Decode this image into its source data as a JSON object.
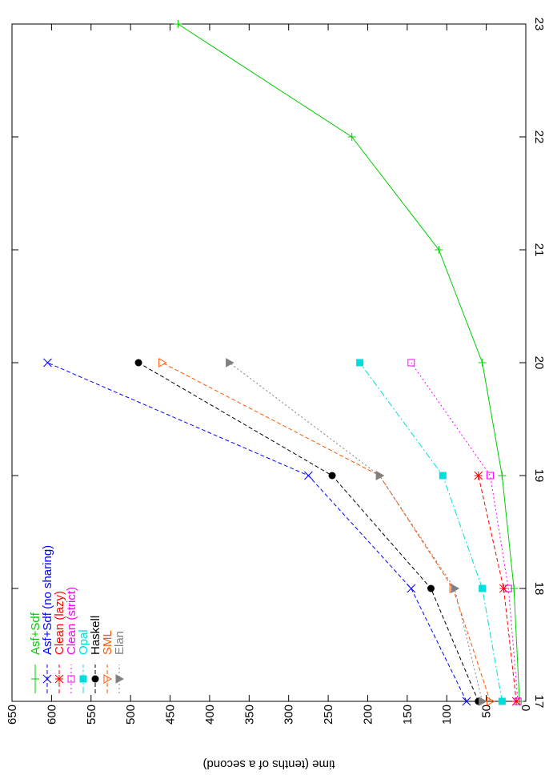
{
  "chart_data": {
    "type": "line",
    "orientation": "rotated-90-clockwise",
    "title": "",
    "xlabel": "",
    "ylabel": "time (tenths of a second)",
    "x": [
      17,
      18,
      19,
      20,
      21,
      22,
      23
    ],
    "x_tick_labels": [
      "17",
      "18",
      "19",
      "20",
      "21",
      "22",
      "23"
    ],
    "xlim": [
      17,
      23
    ],
    "ylim": [
      0,
      650
    ],
    "y_tick_labels": [
      "0",
      "50",
      "100",
      "150",
      "200",
      "250",
      "300",
      "350",
      "400",
      "450",
      "500",
      "550",
      "600",
      "650"
    ],
    "grid": false,
    "legend_position": "top-left",
    "series": [
      {
        "name": "Asf+Sdf",
        "color": "#00cc00",
        "marker": "plus",
        "dash": "solid",
        "x": [
          17,
          18,
          19,
          20,
          21,
          22,
          23
        ],
        "values": [
          8,
          15,
          30,
          55,
          110,
          220,
          440
        ]
      },
      {
        "name": "Asf+Sdf (no sharing)",
        "color": "#0000ff",
        "marker": "cross",
        "dash": "dashed",
        "x": [
          17,
          18,
          19,
          20
        ],
        "values": [
          75,
          145,
          275,
          605
        ]
      },
      {
        "name": "Clean (lazy)",
        "color": "#ff0000",
        "marker": "star",
        "dash": "dashed",
        "x": [
          17,
          18,
          19,
          20
        ],
        "values": [
          12,
          28,
          60,
          null
        ]
      },
      {
        "name": "Clean (strict)",
        "color": "#ff00ff",
        "marker": "open-square",
        "dash": "dotted",
        "x": [
          17,
          18,
          19,
          20
        ],
        "values": [
          10,
          22,
          45,
          145
        ]
      },
      {
        "name": "Opal",
        "color": "#00dddd",
        "marker": "filled-square",
        "dash": "dash-dot",
        "x": [
          17,
          18,
          19,
          20
        ],
        "values": [
          30,
          55,
          105,
          210
        ]
      },
      {
        "name": "Haskell",
        "color": "#000000",
        "marker": "filled-circle",
        "dash": "dashed",
        "x": [
          17,
          18,
          19,
          20
        ],
        "values": [
          60,
          120,
          245,
          490
        ]
      },
      {
        "name": "SML",
        "color": "#ff5500",
        "marker": "open-triangle",
        "dash": "dashed",
        "x": [
          17,
          18,
          19,
          20
        ],
        "values": [
          45,
          92,
          185,
          460
        ]
      },
      {
        "name": "Elan",
        "color": "#808080",
        "marker": "filled-triangle",
        "dash": "dotted",
        "x": [
          17,
          18,
          19,
          20
        ],
        "values": [
          55,
          90,
          185,
          375
        ]
      }
    ]
  }
}
